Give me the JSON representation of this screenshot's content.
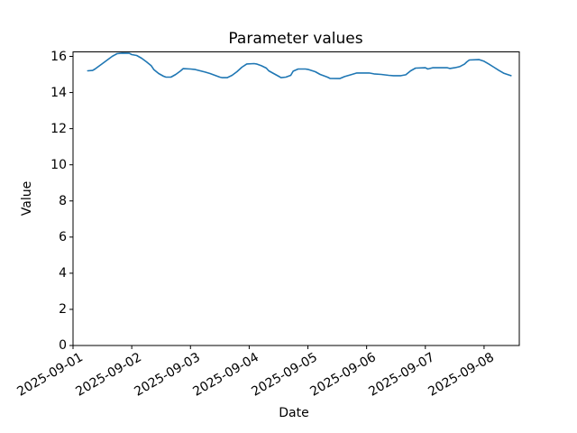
{
  "chart_data": {
    "type": "line",
    "title": "Parameter values",
    "xlabel": "Date",
    "ylabel": "Value",
    "grid": false,
    "line_color": "#1f77b4",
    "axis_color": "#000000",
    "ylim": [
      0,
      16.25
    ],
    "yticks": [
      "0",
      "2",
      "4",
      "6",
      "8",
      "10",
      "12",
      "14",
      "16"
    ],
    "ytick_values": [
      0,
      2,
      4,
      6,
      8,
      10,
      12,
      14,
      16
    ],
    "xlim": [
      "2025-09-01 00:00",
      "2025-09-08 14:24"
    ],
    "xticks": [
      "2025-09-01",
      "2025-09-02",
      "2025-09-03",
      "2025-09-04",
      "2025-09-05",
      "2025-09-06",
      "2025-09-07",
      "2025-09-08"
    ],
    "xtick_rotation_deg": 30,
    "series": [
      {
        "name": "Parameter values",
        "points": [
          [
            "2025-09-01 06:00",
            15.2
          ],
          [
            "2025-09-01 08:00",
            15.22
          ],
          [
            "2025-09-01 09:00",
            15.3
          ],
          [
            "2025-09-01 10:00",
            15.4
          ],
          [
            "2025-09-01 12:00",
            15.6
          ],
          [
            "2025-09-01 14:00",
            15.8
          ],
          [
            "2025-09-01 16:00",
            16.0
          ],
          [
            "2025-09-01 18:00",
            16.15
          ],
          [
            "2025-09-01 20:00",
            16.18
          ],
          [
            "2025-09-01 23:00",
            16.17
          ],
          [
            "2025-09-02 00:00",
            16.1
          ],
          [
            "2025-09-02 02:00",
            16.05
          ],
          [
            "2025-09-02 04:00",
            15.9
          ],
          [
            "2025-09-02 06:00",
            15.7
          ],
          [
            "2025-09-02 08:00",
            15.48
          ],
          [
            "2025-09-02 09:00",
            15.27
          ],
          [
            "2025-09-02 11:00",
            15.05
          ],
          [
            "2025-09-02 13:00",
            14.9
          ],
          [
            "2025-09-02 14:00",
            14.85
          ],
          [
            "2025-09-02 16:00",
            14.85
          ],
          [
            "2025-09-02 18:00",
            15.0
          ],
          [
            "2025-09-02 20:00",
            15.2
          ],
          [
            "2025-09-02 21:00",
            15.32
          ],
          [
            "2025-09-03 00:00",
            15.3
          ],
          [
            "2025-09-03 02:00",
            15.27
          ],
          [
            "2025-09-03 04:00",
            15.2
          ],
          [
            "2025-09-03 06:00",
            15.13
          ],
          [
            "2025-09-03 08:00",
            15.05
          ],
          [
            "2025-09-03 10:00",
            14.95
          ],
          [
            "2025-09-03 12:00",
            14.85
          ],
          [
            "2025-09-03 13:00",
            14.82
          ],
          [
            "2025-09-03 15:00",
            14.82
          ],
          [
            "2025-09-03 17:00",
            14.95
          ],
          [
            "2025-09-03 19:00",
            15.15
          ],
          [
            "2025-09-03 21:00",
            15.4
          ],
          [
            "2025-09-03 23:00",
            15.58
          ],
          [
            "2025-09-04 02:00",
            15.6
          ],
          [
            "2025-09-04 03:00",
            15.58
          ],
          [
            "2025-09-04 05:00",
            15.48
          ],
          [
            "2025-09-04 07:00",
            15.35
          ],
          [
            "2025-09-04 08:00",
            15.2
          ],
          [
            "2025-09-04 10:00",
            15.05
          ],
          [
            "2025-09-04 12:00",
            14.9
          ],
          [
            "2025-09-04 13:00",
            14.82
          ],
          [
            "2025-09-04 15:00",
            14.85
          ],
          [
            "2025-09-04 17:00",
            14.95
          ],
          [
            "2025-09-04 18:00",
            15.18
          ],
          [
            "2025-09-04 20:00",
            15.3
          ],
          [
            "2025-09-04 23:00",
            15.3
          ],
          [
            "2025-09-05 00:00",
            15.28
          ],
          [
            "2025-09-05 03:00",
            15.15
          ],
          [
            "2025-09-05 05:00",
            15.0
          ],
          [
            "2025-09-05 08:00",
            14.85
          ],
          [
            "2025-09-05 09:00",
            14.78
          ],
          [
            "2025-09-05 13:00",
            14.77
          ],
          [
            "2025-09-05 15:00",
            14.88
          ],
          [
            "2025-09-05 18:00",
            15.0
          ],
          [
            "2025-09-05 20:00",
            15.08
          ],
          [
            "2025-09-06 01:00",
            15.08
          ],
          [
            "2025-09-06 03:00",
            15.03
          ],
          [
            "2025-09-06 06:00",
            15.0
          ],
          [
            "2025-09-06 09:00",
            14.95
          ],
          [
            "2025-09-06 11:00",
            14.93
          ],
          [
            "2025-09-06 14:00",
            14.93
          ],
          [
            "2025-09-06 16:00",
            14.98
          ],
          [
            "2025-09-06 18:00",
            15.2
          ],
          [
            "2025-09-06 20:00",
            15.35
          ],
          [
            "2025-09-07 00:00",
            15.37
          ],
          [
            "2025-09-07 01:00",
            15.3
          ],
          [
            "2025-09-07 03:00",
            15.37
          ],
          [
            "2025-09-07 09:00",
            15.37
          ],
          [
            "2025-09-07 10:00",
            15.33
          ],
          [
            "2025-09-07 12:00",
            15.37
          ],
          [
            "2025-09-07 14:00",
            15.43
          ],
          [
            "2025-09-07 16:00",
            15.57
          ],
          [
            "2025-09-07 17:00",
            15.7
          ],
          [
            "2025-09-07 18:00",
            15.8
          ],
          [
            "2025-09-07 22:00",
            15.82
          ],
          [
            "2025-09-08 00:00",
            15.73
          ],
          [
            "2025-09-08 02:00",
            15.57
          ],
          [
            "2025-09-08 04:00",
            15.4
          ],
          [
            "2025-09-08 06:00",
            15.23
          ],
          [
            "2025-09-08 08:00",
            15.07
          ],
          [
            "2025-09-08 11:00",
            14.93
          ]
        ]
      }
    ]
  }
}
